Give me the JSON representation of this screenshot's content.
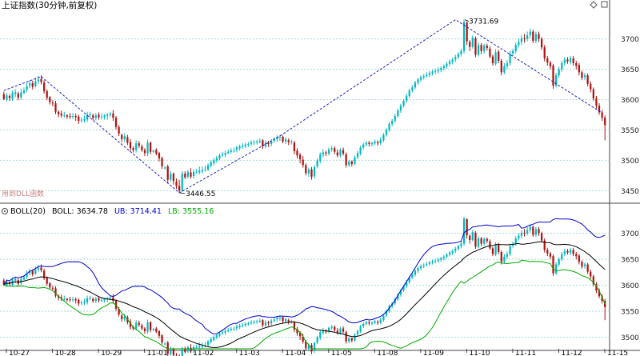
{
  "header": {
    "title": "上证指数(30分钟,前复权)",
    "right_icons": [
      "diamond-icon",
      "square-icon"
    ]
  },
  "chart_data": [
    {
      "type": "candlestick",
      "panel": "main",
      "title": "上证指数(30分钟,前复权)",
      "ylim": [
        3432,
        3743
      ],
      "y_ticks": [
        3450,
        3500,
        3550,
        3600,
        3650,
        3700
      ],
      "annotations": {
        "high_label": "3731.69",
        "low_label": "3446.55",
        "watermark": "用到DLL函数"
      },
      "zigzag": [
        {
          "i": 0,
          "price": 3615
        },
        {
          "i": 13,
          "price": 3638
        },
        {
          "i": 61,
          "price": 3446.55
        },
        {
          "i": 96,
          "price": 3540
        },
        {
          "i": 157,
          "price": 3731.69
        },
        {
          "i": 208,
          "price": 3578
        }
      ],
      "candles": [
        [
          3609,
          3601,
          3613,
          3599
        ],
        [
          3600,
          3607,
          3611,
          3597
        ],
        [
          3606,
          3603,
          3609,
          3598
        ],
        [
          3601,
          3611,
          3615,
          3598
        ],
        [
          3609,
          3612,
          3617,
          3604
        ],
        [
          3610,
          3603,
          3613,
          3599
        ],
        [
          3604,
          3612,
          3618,
          3600
        ],
        [
          3611,
          3615,
          3620,
          3609
        ],
        [
          3616,
          3622,
          3628,
          3612
        ],
        [
          3623,
          3627,
          3632,
          3619
        ],
        [
          3627,
          3621,
          3631,
          3617
        ],
        [
          3622,
          3630,
          3636,
          3620
        ],
        [
          3630,
          3633,
          3639,
          3626
        ],
        [
          3634,
          3629,
          3640,
          3625
        ],
        [
          3628,
          3614,
          3632,
          3610
        ],
        [
          3614,
          3603,
          3617,
          3599
        ],
        [
          3604,
          3596,
          3606,
          3592
        ],
        [
          3595,
          3594,
          3599,
          3589
        ],
        [
          3594,
          3580,
          3598,
          3576
        ],
        [
          3580,
          3576,
          3582,
          3571
        ],
        [
          3577,
          3574,
          3582,
          3570
        ],
        [
          3574,
          3574,
          3580,
          3570
        ],
        [
          3574,
          3572,
          3576,
          3568
        ],
        [
          3573,
          3572,
          3578,
          3568
        ],
        [
          3572,
          3573,
          3578,
          3568
        ],
        [
          3573,
          3571,
          3577,
          3565
        ],
        [
          3572,
          3565,
          3575,
          3560
        ],
        [
          3566,
          3567,
          3571,
          3562
        ],
        [
          3566,
          3568,
          3574,
          3562
        ],
        [
          3567,
          3575,
          3580,
          3563
        ],
        [
          3574,
          3576,
          3580,
          3571
        ],
        [
          3574,
          3570,
          3577,
          3566
        ],
        [
          3570,
          3574,
          3578,
          3566
        ],
        [
          3575,
          3571,
          3579,
          3567
        ],
        [
          3572,
          3572,
          3577,
          3568
        ],
        [
          3571,
          3574,
          3576,
          3567
        ],
        [
          3573,
          3575,
          3578,
          3567
        ],
        [
          3575,
          3577,
          3580,
          3571
        ],
        [
          3577,
          3570,
          3583,
          3565
        ],
        [
          3570,
          3555,
          3573,
          3551
        ],
        [
          3555,
          3544,
          3558,
          3540
        ],
        [
          3542,
          3535,
          3544,
          3530
        ],
        [
          3534,
          3540,
          3545,
          3530
        ],
        [
          3538,
          3529,
          3542,
          3525
        ],
        [
          3530,
          3520,
          3535,
          3515
        ],
        [
          3520,
          3517,
          3523,
          3513
        ],
        [
          3517,
          3528,
          3533,
          3513
        ],
        [
          3528,
          3524,
          3532,
          3520
        ],
        [
          3523,
          3517,
          3526,
          3514
        ],
        [
          3517,
          3512,
          3520,
          3507
        ],
        [
          3511,
          3529,
          3534,
          3507
        ],
        [
          3529,
          3514,
          3531,
          3510
        ],
        [
          3514,
          3516,
          3518,
          3512
        ],
        [
          3517,
          3511,
          3520,
          3508
        ],
        [
          3512,
          3503,
          3514,
          3498
        ],
        [
          3504,
          3490,
          3506,
          3486
        ],
        [
          3488,
          3488,
          3491,
          3485
        ],
        [
          3490,
          3468,
          3493,
          3462
        ],
        [
          3468,
          3478,
          3482,
          3465
        ],
        [
          3478,
          3466,
          3480,
          3460
        ],
        [
          3465,
          3458,
          3470,
          3453
        ],
        [
          3458,
          3450,
          3468,
          3446.55
        ],
        [
          3450,
          3478,
          3482,
          3448
        ],
        [
          3478,
          3472,
          3482,
          3469
        ],
        [
          3473,
          3481,
          3484,
          3470
        ],
        [
          3480,
          3473,
          3487,
          3470
        ],
        [
          3474,
          3481,
          3485,
          3470
        ],
        [
          3480,
          3481,
          3486,
          3478
        ],
        [
          3480,
          3483,
          3490,
          3477
        ],
        [
          3482,
          3484,
          3490,
          3478
        ],
        [
          3484,
          3485,
          3491,
          3481
        ],
        [
          3485,
          3492,
          3495,
          3482
        ],
        [
          3491,
          3497,
          3500,
          3488
        ],
        [
          3495,
          3500,
          3504,
          3492
        ],
        [
          3500,
          3504,
          3507,
          3496
        ],
        [
          3503,
          3508,
          3511,
          3500
        ],
        [
          3508,
          3510,
          3514,
          3505
        ],
        [
          3509,
          3512,
          3516,
          3505
        ],
        [
          3512,
          3514,
          3518,
          3510
        ],
        [
          3514,
          3516,
          3520,
          3511
        ],
        [
          3516,
          3516,
          3521,
          3513
        ],
        [
          3517,
          3521,
          3524,
          3513
        ],
        [
          3520,
          3523,
          3526,
          3516
        ],
        [
          3522,
          3524,
          3528,
          3519
        ],
        [
          3523,
          3526,
          3529,
          3520
        ],
        [
          3525,
          3527,
          3530,
          3522
        ],
        [
          3527,
          3529,
          3533,
          3524
        ],
        [
          3529,
          3530,
          3533,
          3525
        ],
        [
          3530,
          3531,
          3534,
          3526
        ],
        [
          3530,
          3532,
          3536,
          3528
        ],
        [
          3533,
          3523,
          3535,
          3519
        ],
        [
          3523,
          3529,
          3533,
          3520
        ],
        [
          3529,
          3527,
          3532,
          3522
        ],
        [
          3527,
          3532,
          3535,
          3523
        ],
        [
          3532,
          3534,
          3538,
          3529
        ],
        [
          3535,
          3538,
          3541,
          3530
        ],
        [
          3538,
          3539,
          3542,
          3532
        ],
        [
          3539,
          3531,
          3541,
          3528
        ],
        [
          3531,
          3535,
          3538,
          3527
        ],
        [
          3533,
          3530,
          3536,
          3525
        ],
        [
          3531,
          3531,
          3534,
          3526
        ],
        [
          3529,
          3515,
          3532,
          3510
        ],
        [
          3516,
          3508,
          3520,
          3503
        ],
        [
          3509,
          3502,
          3512,
          3495
        ],
        [
          3501,
          3492,
          3507,
          3488
        ],
        [
          3492,
          3479,
          3495,
          3475
        ],
        [
          3478,
          3485,
          3488,
          3473
        ],
        [
          3485,
          3473,
          3489,
          3468
        ],
        [
          3474,
          3489,
          3492,
          3470
        ],
        [
          3490,
          3500,
          3503,
          3487
        ],
        [
          3499,
          3510,
          3513,
          3495
        ],
        [
          3509,
          3513,
          3518,
          3505
        ],
        [
          3513,
          3511,
          3516,
          3507
        ],
        [
          3511,
          3518,
          3521,
          3508
        ],
        [
          3518,
          3520,
          3524,
          3514
        ],
        [
          3520,
          3514,
          3523,
          3510
        ],
        [
          3513,
          3508,
          3518,
          3505
        ],
        [
          3508,
          3517,
          3520,
          3505
        ],
        [
          3517,
          3511,
          3521,
          3508
        ],
        [
          3510,
          3492,
          3513,
          3488
        ],
        [
          3492,
          3498,
          3501,
          3489
        ],
        [
          3498,
          3494,
          3500,
          3490
        ],
        [
          3494,
          3505,
          3508,
          3492
        ],
        [
          3505,
          3512,
          3515,
          3502
        ],
        [
          3511,
          3521,
          3524,
          3508
        ],
        [
          3521,
          3526,
          3529,
          3518
        ],
        [
          3526,
          3529,
          3532,
          3523
        ],
        [
          3529,
          3527,
          3532,
          3523
        ],
        [
          3527,
          3528,
          3531,
          3523
        ],
        [
          3528,
          3531,
          3534,
          3525
        ],
        [
          3530,
          3528,
          3533,
          3524
        ],
        [
          3528,
          3534,
          3538,
          3525
        ],
        [
          3533,
          3542,
          3545,
          3530
        ],
        [
          3542,
          3550,
          3553,
          3539
        ],
        [
          3550,
          3560,
          3563,
          3547
        ],
        [
          3560,
          3565,
          3568,
          3556
        ],
        [
          3565,
          3573,
          3577,
          3562
        ],
        [
          3573,
          3582,
          3585,
          3570
        ],
        [
          3582,
          3590,
          3593,
          3578
        ],
        [
          3590,
          3598,
          3601,
          3587
        ],
        [
          3598,
          3606,
          3610,
          3595
        ],
        [
          3606,
          3615,
          3618,
          3603
        ],
        [
          3615,
          3620,
          3624,
          3612
        ],
        [
          3620,
          3628,
          3631,
          3617
        ],
        [
          3628,
          3633,
          3636,
          3624
        ],
        [
          3633,
          3637,
          3640,
          3629
        ],
        [
          3637,
          3639,
          3642,
          3633
        ],
        [
          3639,
          3641,
          3645,
          3636
        ],
        [
          3641,
          3644,
          3647,
          3637
        ],
        [
          3644,
          3646,
          3649,
          3640
        ],
        [
          3646,
          3647,
          3651,
          3642
        ],
        [
          3647,
          3649,
          3653,
          3643
        ],
        [
          3649,
          3652,
          3655,
          3645
        ],
        [
          3652,
          3655,
          3658,
          3648
        ],
        [
          3655,
          3659,
          3662,
          3651
        ],
        [
          3659,
          3663,
          3666,
          3655
        ],
        [
          3662,
          3666,
          3669,
          3658
        ],
        [
          3666,
          3670,
          3674,
          3662
        ],
        [
          3670,
          3675,
          3678,
          3667
        ],
        [
          3675,
          3680,
          3684,
          3671
        ],
        [
          3680,
          3728,
          3731.69,
          3676
        ],
        [
          3727,
          3696,
          3729,
          3690
        ],
        [
          3695,
          3687,
          3698,
          3680
        ],
        [
          3687,
          3702,
          3706,
          3684
        ],
        [
          3701,
          3674,
          3704,
          3670
        ],
        [
          3674,
          3690,
          3694,
          3671
        ],
        [
          3690,
          3680,
          3693,
          3675
        ],
        [
          3680,
          3689,
          3692,
          3676
        ],
        [
          3689,
          3685,
          3692,
          3681
        ],
        [
          3684,
          3671,
          3688,
          3668
        ],
        [
          3671,
          3660,
          3674,
          3656
        ],
        [
          3659,
          3678,
          3683,
          3656
        ],
        [
          3679,
          3664,
          3682,
          3660
        ],
        [
          3664,
          3645,
          3667,
          3640
        ],
        [
          3645,
          3655,
          3660,
          3642
        ],
        [
          3655,
          3660,
          3665,
          3650
        ],
        [
          3660,
          3675,
          3680,
          3656
        ],
        [
          3676,
          3680,
          3684,
          3672
        ],
        [
          3680,
          3690,
          3694,
          3676
        ],
        [
          3690,
          3695,
          3700,
          3686
        ],
        [
          3695,
          3701,
          3706,
          3690
        ],
        [
          3701,
          3700,
          3708,
          3694
        ],
        [
          3700,
          3706,
          3712,
          3696
        ],
        [
          3706,
          3712,
          3717,
          3701
        ],
        [
          3712,
          3697,
          3715,
          3693
        ],
        [
          3697,
          3708,
          3712,
          3693
        ],
        [
          3708,
          3700,
          3712,
          3695
        ],
        [
          3700,
          3686,
          3703,
          3682
        ],
        [
          3686,
          3668,
          3690,
          3663
        ],
        [
          3668,
          3661,
          3672,
          3656
        ],
        [
          3661,
          3655,
          3664,
          3650
        ],
        [
          3656,
          3623,
          3659,
          3618
        ],
        [
          3623,
          3640,
          3644,
          3620
        ],
        [
          3640,
          3650,
          3654,
          3636
        ],
        [
          3650,
          3660,
          3664,
          3646
        ],
        [
          3660,
          3666,
          3670,
          3656
        ],
        [
          3666,
          3663,
          3670,
          3659
        ],
        [
          3662,
          3668,
          3672,
          3658
        ],
        [
          3668,
          3660,
          3672,
          3656
        ],
        [
          3660,
          3656,
          3664,
          3650
        ],
        [
          3657,
          3645,
          3660,
          3640
        ],
        [
          3645,
          3636,
          3648,
          3632
        ],
        [
          3637,
          3640,
          3644,
          3632
        ],
        [
          3640,
          3626,
          3643,
          3622
        ],
        [
          3626,
          3617,
          3630,
          3612
        ],
        [
          3617,
          3602,
          3620,
          3598
        ],
        [
          3602,
          3590,
          3606,
          3585
        ],
        [
          3590,
          3579,
          3594,
          3575
        ],
        [
          3579,
          3570,
          3583,
          3565
        ],
        [
          3570,
          3558,
          3574,
          3533
        ]
      ]
    },
    {
      "type": "line",
      "panel": "indicator",
      "title": "BOLL(20)",
      "legend": [
        {
          "name": "BOLL",
          "value": "3634.78",
          "color": "#000000"
        },
        {
          "name": "UB",
          "value": "3714.41",
          "color": "#0000cc"
        },
        {
          "name": "LB",
          "value": "3555.16",
          "color": "#00aa00"
        }
      ],
      "ylim": [
        3478,
        3730
      ],
      "y_ticks": [
        3500,
        3550,
        3600,
        3650,
        3700
      ],
      "x_labels": [
        "10-27",
        "10-28",
        "10-29",
        "11-01",
        "11-02",
        "11-03",
        "11-04",
        "11-05",
        "11-08",
        "11-09",
        "11-10",
        "11-11",
        "11-12",
        "11-15"
      ]
    }
  ],
  "colors": {
    "up": "#00b8c0",
    "down": "#b01010",
    "zigzag": "#2020c0",
    "grid": "#a8dcdc",
    "boll_mid": "#000000",
    "boll_upper": "#0000cc",
    "boll_lower": "#00aa00",
    "watermark": "#cc8080"
  }
}
